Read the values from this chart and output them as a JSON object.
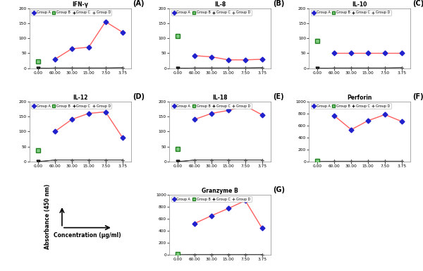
{
  "x_labels": [
    "0.00",
    "60.00",
    "30.00",
    "15.00",
    "7.50",
    "3.75"
  ],
  "x_positions": [
    0,
    1,
    2,
    3,
    4,
    5
  ],
  "charts": [
    {
      "title": "IFN-γ",
      "label": "(A)",
      "ylim": [
        0,
        200
      ],
      "yticks": [
        0,
        50,
        100,
        150,
        200
      ],
      "group_a": [
        null,
        30,
        65,
        70,
        155,
        120
      ],
      "group_b": [
        22,
        null,
        null,
        null,
        null,
        null
      ],
      "group_c": [
        0,
        1,
        1,
        1,
        1,
        2
      ],
      "group_d": [
        -2,
        1,
        1,
        1,
        1,
        2
      ]
    },
    {
      "title": "IL-8",
      "label": "(B)",
      "ylim": [
        0,
        200
      ],
      "yticks": [
        0,
        50,
        100,
        150,
        200
      ],
      "group_a": [
        null,
        42,
        38,
        28,
        28,
        30
      ],
      "group_b": [
        108,
        null,
        null,
        null,
        null,
        null
      ],
      "group_c": [
        0,
        1,
        1,
        1,
        1,
        2
      ],
      "group_d": [
        -2,
        1,
        1,
        1,
        1,
        2
      ]
    },
    {
      "title": "IL-10",
      "label": "(C)",
      "ylim": [
        0,
        200
      ],
      "yticks": [
        0,
        50,
        100,
        150,
        200
      ],
      "group_a": [
        null,
        50,
        50,
        50,
        50,
        50
      ],
      "group_b": [
        92,
        null,
        null,
        null,
        null,
        null
      ],
      "group_c": [
        0,
        1,
        1,
        1,
        1,
        2
      ],
      "group_d": [
        -2,
        1,
        1,
        1,
        1,
        2
      ]
    },
    {
      "title": "IL-12",
      "label": "(D)",
      "ylim": [
        0,
        200
      ],
      "yticks": [
        0,
        50,
        100,
        150,
        200
      ],
      "group_a": [
        null,
        100,
        140,
        160,
        165,
        80
      ],
      "group_b": [
        38,
        null,
        null,
        null,
        null,
        null
      ],
      "group_c": [
        0,
        5,
        5,
        5,
        5,
        5
      ],
      "group_d": [
        -2,
        5,
        5,
        5,
        5,
        5
      ]
    },
    {
      "title": "IL-18",
      "label": "(E)",
      "ylim": [
        0,
        200
      ],
      "yticks": [
        0,
        50,
        100,
        150,
        200
      ],
      "group_a": [
        null,
        140,
        160,
        170,
        185,
        155
      ],
      "group_b": [
        42,
        null,
        null,
        null,
        null,
        null
      ],
      "group_c": [
        0,
        5,
        5,
        5,
        5,
        5
      ],
      "group_d": [
        -2,
        5,
        5,
        5,
        5,
        5
      ]
    },
    {
      "title": "Perforin",
      "label": "(F)",
      "ylim": [
        0,
        1000
      ],
      "yticks": [
        0,
        200,
        400,
        600,
        800,
        1000
      ],
      "group_a": [
        null,
        760,
        530,
        680,
        780,
        665
      ],
      "group_b": [
        10,
        null,
        null,
        null,
        null,
        null
      ],
      "group_c": [
        0,
        5,
        5,
        5,
        5,
        5
      ],
      "group_d": [
        -5,
        5,
        5,
        5,
        5,
        5
      ]
    },
    {
      "title": "Granzyme B",
      "label": "(G)",
      "ylim": [
        0,
        1000
      ],
      "yticks": [
        0,
        200,
        400,
        600,
        800,
        1000
      ],
      "group_a": [
        null,
        520,
        650,
        770,
        900,
        440
      ],
      "group_b": [
        12,
        null,
        null,
        null,
        null,
        null
      ],
      "group_c": [
        0,
        5,
        5,
        5,
        5,
        5
      ],
      "group_d": [
        -5,
        5,
        5,
        5,
        5,
        5
      ]
    }
  ],
  "colors": {
    "group_a_line": "#FF6060",
    "group_a_marker": "#2020CC",
    "group_b_marker_face": "#80CC80",
    "group_b_marker_edge": "#208020",
    "group_c_color": "#111111",
    "group_d_color": "#555555"
  },
  "legend_labels": [
    "Group A",
    "Group B",
    "Group C",
    "Group D"
  ],
  "xlabel": "Concentration (μg/ml)",
  "ylabel": "Absorbance (450 nm)",
  "fig_bg": "#FFFFFF",
  "plot_bg": "#FFFFFF"
}
